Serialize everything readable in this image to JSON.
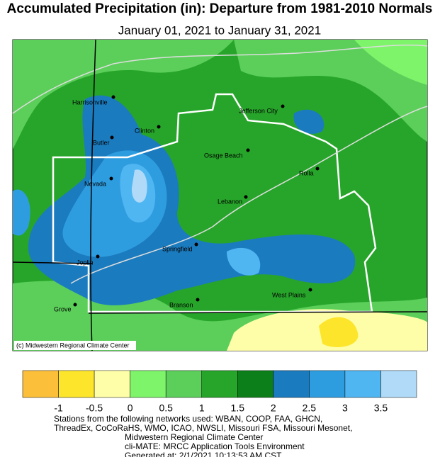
{
  "title": "Accumulated Precipitation (in): Departure from 1981-2010 Normals",
  "subtitle": "January 01, 2021 to January 31, 2021",
  "credit": "(c) Midwestern Regional Climate Center",
  "cities": [
    "Harrisonville",
    "Clinton",
    "Butler",
    "Osage Beach",
    "Jefferson City",
    "Rolla",
    "Nevada",
    "Lebanon",
    "Springfield",
    "Joplin",
    "Branson",
    "West Plains",
    "Grove"
  ],
  "legend": {
    "colors": [
      "#fbbf3a",
      "#fde52b",
      "#fefea8",
      "#7ef46a",
      "#5bcf5a",
      "#27a52a",
      "#0d7f1a",
      "#1b7bbf",
      "#2e9de0",
      "#4fb6f2",
      "#b0daf8"
    ],
    "ticks": [
      -1,
      -0.5,
      0,
      0.5,
      1,
      1.5,
      2,
      2.5,
      3,
      3.5
    ]
  },
  "footer": [
    "Stations from the following networks used: WBAN, COOP, FAA, GHCN,",
    "ThreadEx, CoCoRaHS, WMO, ICAO, NWSLI, Missouri FSA, Missouri Mesonet,",
    "Midwestern Regional Climate Center",
    "cli-MATE: MRCC Application Tools Environment",
    "Generated at: 2/1/2021 10:13:53 AM CST"
  ]
}
